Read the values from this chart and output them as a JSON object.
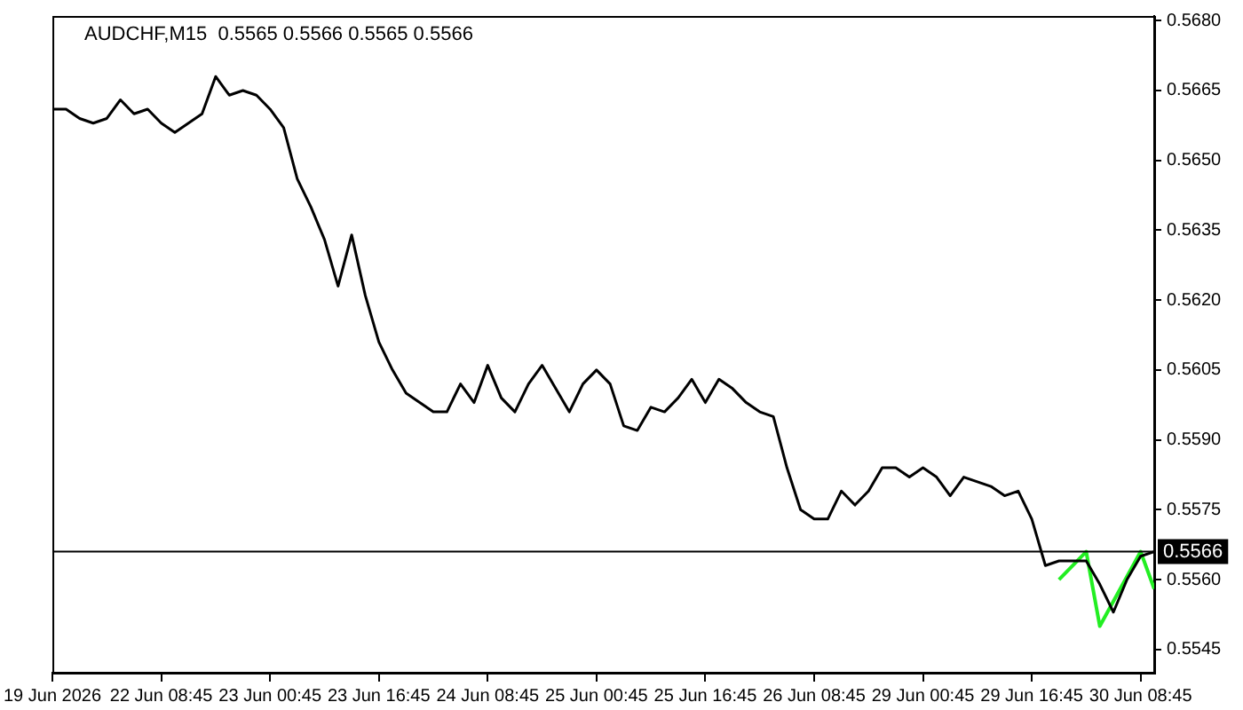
{
  "chart_data": {
    "type": "line",
    "title": "AUDCHF,M15  0.5565 0.5566 0.5565 0.5566",
    "categories": [
      "19 Jun 2026",
      null,
      null,
      null,
      null,
      null,
      null,
      null,
      "22 Jun 08:45",
      null,
      null,
      null,
      null,
      null,
      null,
      null,
      "23 Jun 00:45",
      null,
      null,
      null,
      null,
      null,
      null,
      null,
      "23 Jun 16:45",
      null,
      null,
      null,
      null,
      null,
      null,
      null,
      "24 Jun 08:45",
      null,
      null,
      null,
      null,
      null,
      null,
      null,
      "25 Jun 00:45",
      null,
      null,
      null,
      null,
      null,
      null,
      null,
      "25 Jun 16:45",
      null,
      null,
      null,
      null,
      null,
      null,
      null,
      "26 Jun 08:45",
      null,
      null,
      null,
      null,
      null,
      null,
      null,
      "29 Jun 00:45",
      null,
      null,
      null,
      null,
      null,
      null,
      null,
      "29 Jun 16:45",
      null,
      null,
      null,
      null,
      null,
      null,
      null,
      "30 Jun 08:45",
      null
    ],
    "series": [
      {
        "color": "#000000",
        "values": [
          0.5661,
          0.5661,
          0.5659,
          0.5658,
          0.5659,
          0.5663,
          0.566,
          0.5661,
          0.5658,
          0.5656,
          0.5658,
          0.566,
          0.5668,
          0.5664,
          0.5665,
          0.5664,
          0.5661,
          0.5657,
          0.5646,
          0.564,
          0.5633,
          0.5623,
          0.5634,
          0.5621,
          0.5611,
          0.5605,
          0.56,
          0.5598,
          0.5596,
          0.5596,
          0.5602,
          0.5598,
          0.5606,
          0.5599,
          0.5596,
          0.5602,
          0.5606,
          0.5601,
          0.5596,
          0.5602,
          0.5605,
          0.5602,
          0.5593,
          0.5592,
          0.5597,
          0.5596,
          0.5599,
          0.5603,
          0.5598,
          0.5603,
          0.5601,
          0.5598,
          0.5596,
          0.5595,
          0.5584,
          0.5575,
          0.5573,
          0.5573,
          0.5579,
          0.5576,
          0.5579,
          0.5584,
          0.5584,
          0.5582,
          0.5584,
          0.5582,
          0.5578,
          0.5582,
          0.5581,
          0.558,
          0.5578,
          0.5579,
          0.5573,
          0.5563,
          0.5564,
          0.5564,
          0.5564,
          0.5559,
          0.5553,
          0.556,
          0.5565,
          0.5566
        ]
      },
      {
        "color": "#22ee22",
        "values": [
          null,
          null,
          null,
          null,
          null,
          null,
          null,
          null,
          null,
          null,
          null,
          null,
          null,
          null,
          null,
          null,
          null,
          null,
          null,
          null,
          null,
          null,
          null,
          null,
          null,
          null,
          null,
          null,
          null,
          null,
          null,
          null,
          null,
          null,
          null,
          null,
          null,
          null,
          null,
          null,
          null,
          null,
          null,
          null,
          null,
          null,
          null,
          null,
          null,
          null,
          null,
          null,
          null,
          null,
          null,
          null,
          null,
          null,
          null,
          null,
          null,
          null,
          null,
          null,
          null,
          null,
          null,
          null,
          null,
          null,
          null,
          null,
          null,
          null,
          0.556,
          null,
          0.5566,
          0.555,
          null,
          null,
          0.5566,
          0.5558
        ]
      }
    ],
    "ylim": [
      0.554,
      0.5681
    ],
    "yticks": [
      0.5545,
      {
        "value": 0.556,
        "label": "0.5560"
      },
      0.5575,
      {
        "value": 0.559,
        "label": "0.5590"
      },
      0.5605,
      {
        "value": 0.562,
        "label": "0.5620"
      },
      0.5635,
      {
        "value": 0.565,
        "label": "0.5650"
      },
      0.5665,
      {
        "value": 0.568,
        "label": "0.5680"
      }
    ],
    "ref_lines": [
      {
        "axis": "y",
        "value": 0.5566,
        "label": "0.5566",
        "color": "#000000"
      }
    ],
    "grid": false,
    "legend": false,
    "marker": "none",
    "line_style": "solid"
  }
}
